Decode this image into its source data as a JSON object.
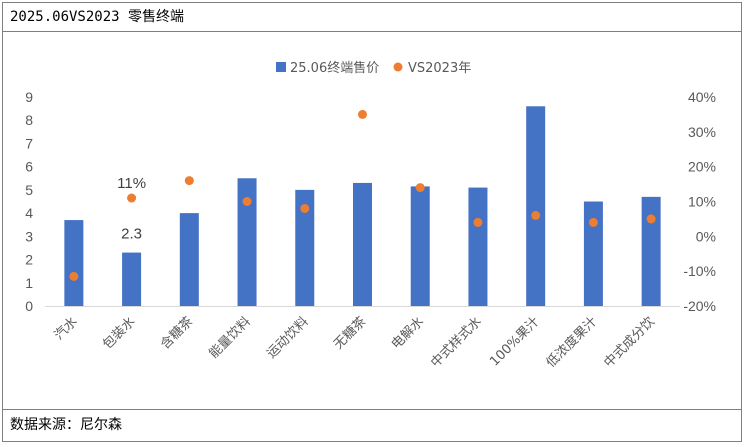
{
  "header": {
    "title": "2025.06VS2023 零售终端"
  },
  "footer": {
    "source": "数据来源：尼尔森"
  },
  "chart_data": {
    "type": "bar",
    "categories": [
      "汽水",
      "包装水",
      "含糖茶",
      "能量饮料",
      "运动饮料",
      "无糖茶",
      "电解水",
      "中式样式水",
      "100%果汁",
      "低浓度果汁",
      "中式成分饮"
    ],
    "series": [
      {
        "name": "25.06终端售价",
        "type": "bar",
        "axis": "left",
        "values": [
          3.7,
          2.3,
          4.0,
          5.5,
          5.0,
          5.3,
          5.15,
          5.1,
          8.6,
          4.5,
          4.7
        ]
      },
      {
        "name": "VS2023年",
        "type": "scatter",
        "axis": "right",
        "unit": "%",
        "values": [
          -11.5,
          11,
          16,
          10,
          8,
          35,
          14,
          4,
          6,
          4,
          5
        ]
      }
    ],
    "data_labels": [
      {
        "series": "25.06终端售价",
        "category": "包装水",
        "text": "2.3"
      },
      {
        "series": "VS2023年",
        "category": "包装水",
        "text": "11%"
      }
    ],
    "y_left": {
      "min": 0,
      "max": 9,
      "ticks": [
        "0",
        "1",
        "2",
        "3",
        "4",
        "5",
        "6",
        "7",
        "8",
        "9"
      ]
    },
    "y_right": {
      "min": -20,
      "max": 40,
      "ticks": [
        "-20%",
        "-10%",
        "0%",
        "10%",
        "20%",
        "30%",
        "40%"
      ]
    },
    "legend_position": "top-center",
    "grid": false,
    "colors": {
      "bar": "#4472C4",
      "marker": "#ED7D31"
    }
  }
}
